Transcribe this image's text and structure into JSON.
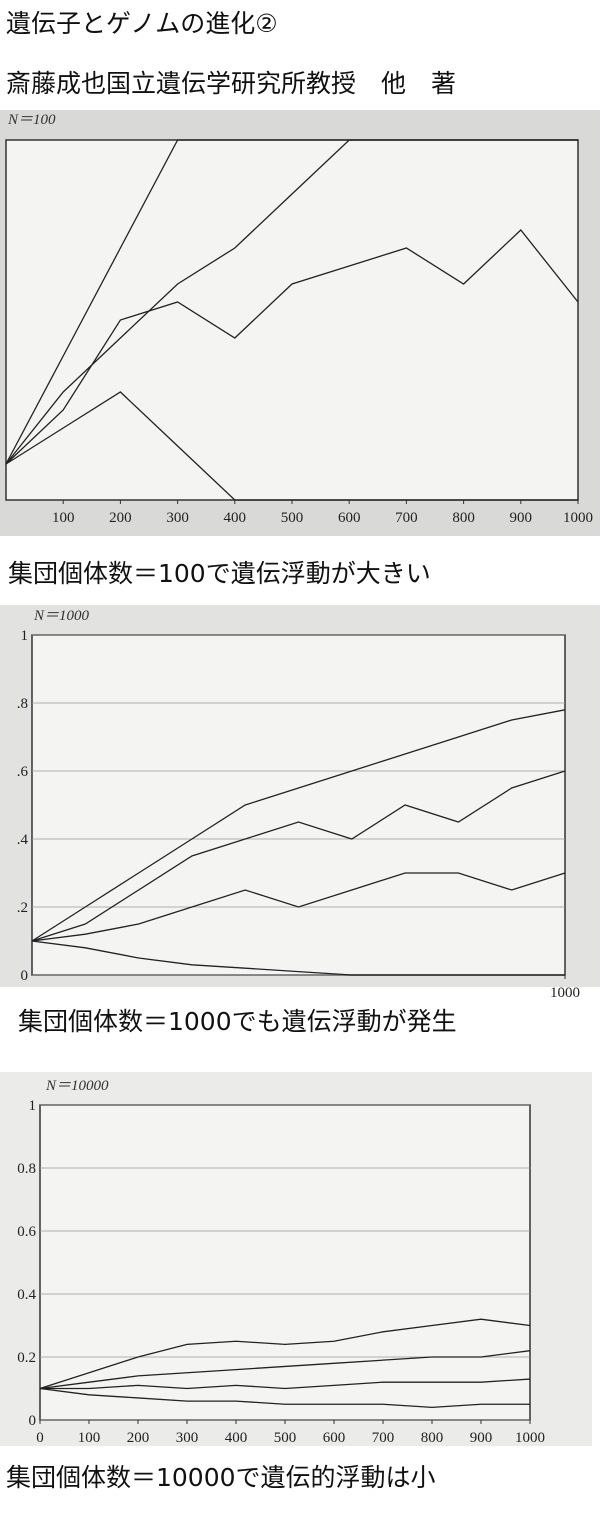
{
  "header": {
    "title": "遺伝子とゲノムの進化②",
    "author": "斎藤成也国立遺伝学研究所教授　他　著"
  },
  "captions": [
    "集団個体数＝100で遺伝浮動が大きい",
    "集団個体数＝1000でも遺伝浮動が発生",
    "集団個体数＝10000で遺伝的浮動は小"
  ],
  "chart_data": [
    {
      "type": "line",
      "title": "N＝100",
      "x": [
        0,
        100,
        200,
        300,
        400,
        500,
        600,
        700,
        800,
        900,
        1000
      ],
      "xlim": [
        0,
        1000
      ],
      "ylim": [
        0,
        1
      ],
      "xticks": [
        100,
        200,
        300,
        400,
        500,
        600,
        700,
        800,
        900,
        1000
      ],
      "series": [
        {
          "color": "#222222",
          "values": [
            0.1,
            0.4,
            0.7,
            1,
            1,
            1,
            1,
            1,
            1,
            1,
            1
          ]
        },
        {
          "color": "#222222",
          "values": [
            0.1,
            0.3,
            0.45,
            0.6,
            0.7,
            0.85,
            1,
            1,
            1,
            1,
            1
          ]
        },
        {
          "color": "#222222",
          "values": [
            0.1,
            0.25,
            0.5,
            0.55,
            0.45,
            0.6,
            0.65,
            0.7,
            0.6,
            0.75,
            0.55
          ]
        },
        {
          "color": "#222222",
          "values": [
            0.1,
            0.2,
            0.3,
            0.15,
            0,
            0,
            0,
            0,
            0,
            0,
            0
          ]
        }
      ]
    },
    {
      "type": "line",
      "title": "N＝1000",
      "x": [
        0,
        100,
        200,
        300,
        400,
        500,
        600,
        700,
        800,
        900,
        1000
      ],
      "xlim": [
        0,
        1000
      ],
      "ylim": [
        0,
        1
      ],
      "xticks": [
        1000
      ],
      "yticks": [
        0,
        {
          "value": 0.2,
          "label": ".2"
        },
        {
          "value": 0.4,
          "label": ".4"
        },
        {
          "value": 0.6,
          "label": ".6"
        },
        {
          "value": 0.8,
          "label": ".8"
        },
        1
      ],
      "grid": true,
      "series": [
        {
          "color": "#222222",
          "values": [
            0.1,
            0.2,
            0.3,
            0.4,
            0.5,
            0.55,
            0.6,
            0.65,
            0.7,
            0.75,
            0.78
          ]
        },
        {
          "color": "#222222",
          "values": [
            0.1,
            0.15,
            0.25,
            0.35,
            0.4,
            0.45,
            0.4,
            0.5,
            0.45,
            0.55,
            0.6
          ]
        },
        {
          "color": "#222222",
          "values": [
            0.1,
            0.12,
            0.15,
            0.2,
            0.25,
            0.2,
            0.25,
            0.3,
            0.3,
            0.25,
            0.3
          ]
        },
        {
          "color": "#222222",
          "values": [
            0.1,
            0.08,
            0.05,
            0.03,
            0.02,
            0.01,
            0,
            0,
            0,
            0,
            0
          ]
        }
      ]
    },
    {
      "type": "line",
      "title": "N＝10000",
      "x": [
        0,
        100,
        200,
        300,
        400,
        500,
        600,
        700,
        800,
        900,
        1000
      ],
      "xlim": [
        0,
        1000
      ],
      "ylim": [
        0,
        1
      ],
      "xticks": [
        0,
        100,
        200,
        300,
        400,
        500,
        600,
        700,
        800,
        900,
        1000
      ],
      "yticks": [
        0,
        0.2,
        0.4,
        0.6,
        0.8,
        1
      ],
      "grid": true,
      "series": [
        {
          "color": "#222222",
          "values": [
            0.1,
            0.15,
            0.2,
            0.24,
            0.25,
            0.24,
            0.25,
            0.28,
            0.3,
            0.32,
            0.3
          ]
        },
        {
          "color": "#222222",
          "values": [
            0.1,
            0.12,
            0.14,
            0.15,
            0.16,
            0.17,
            0.18,
            0.19,
            0.2,
            0.2,
            0.22
          ]
        },
        {
          "color": "#222222",
          "values": [
            0.1,
            0.1,
            0.11,
            0.1,
            0.11,
            0.1,
            0.11,
            0.12,
            0.12,
            0.12,
            0.13
          ]
        },
        {
          "color": "#222222",
          "values": [
            0.1,
            0.08,
            0.07,
            0.06,
            0.06,
            0.05,
            0.05,
            0.05,
            0.04,
            0.05,
            0.05
          ]
        }
      ]
    }
  ]
}
